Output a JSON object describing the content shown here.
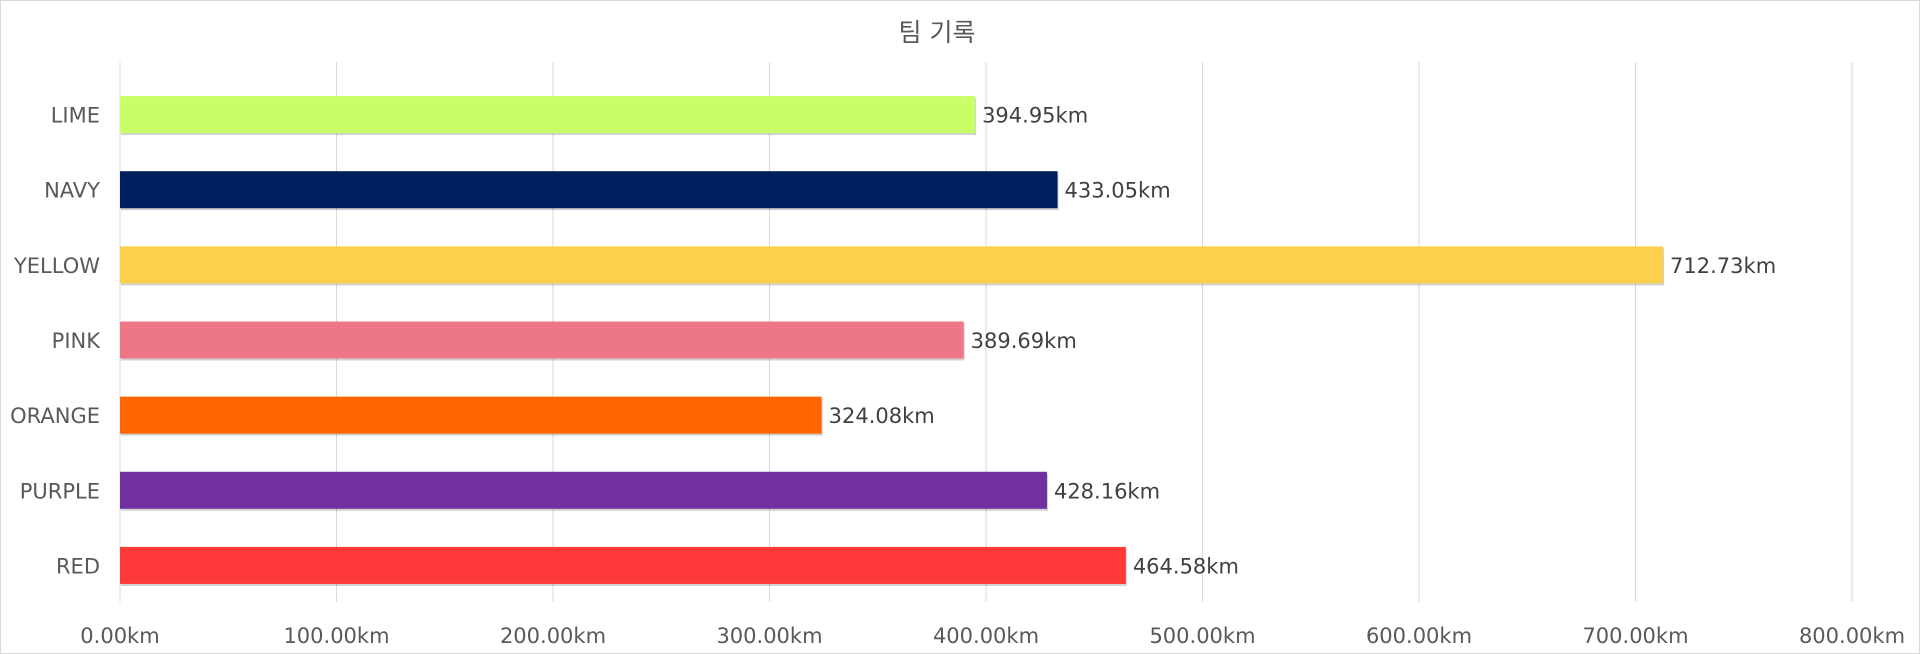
{
  "chart_data": {
    "type": "bar",
    "orientation": "horizontal",
    "title": "팀 기록",
    "categories": [
      "LIME",
      "NAVY",
      "YELLOW",
      "PINK",
      "ORANGE",
      "PURPLE",
      "RED"
    ],
    "values": [
      394.95,
      433.05,
      712.73,
      389.69,
      324.08,
      428.16,
      464.58
    ],
    "data_labels": [
      "394.95km",
      "433.05km",
      "712.73km",
      "389.69km",
      "324.08km",
      "428.16km",
      "464.58km"
    ],
    "colors": [
      "#c8ff66",
      "#001f5f",
      "#fbd14b",
      "#ee7786",
      "#ff6600",
      "#7030a0",
      "#ff3838"
    ],
    "x_ticks": [
      "0.00km",
      "100.00km",
      "200.00km",
      "300.00km",
      "400.00km",
      "500.00km",
      "600.00km",
      "700.00km",
      "800.00km"
    ],
    "xlim": [
      0,
      800
    ],
    "grid": "vertical",
    "legend": "none"
  }
}
